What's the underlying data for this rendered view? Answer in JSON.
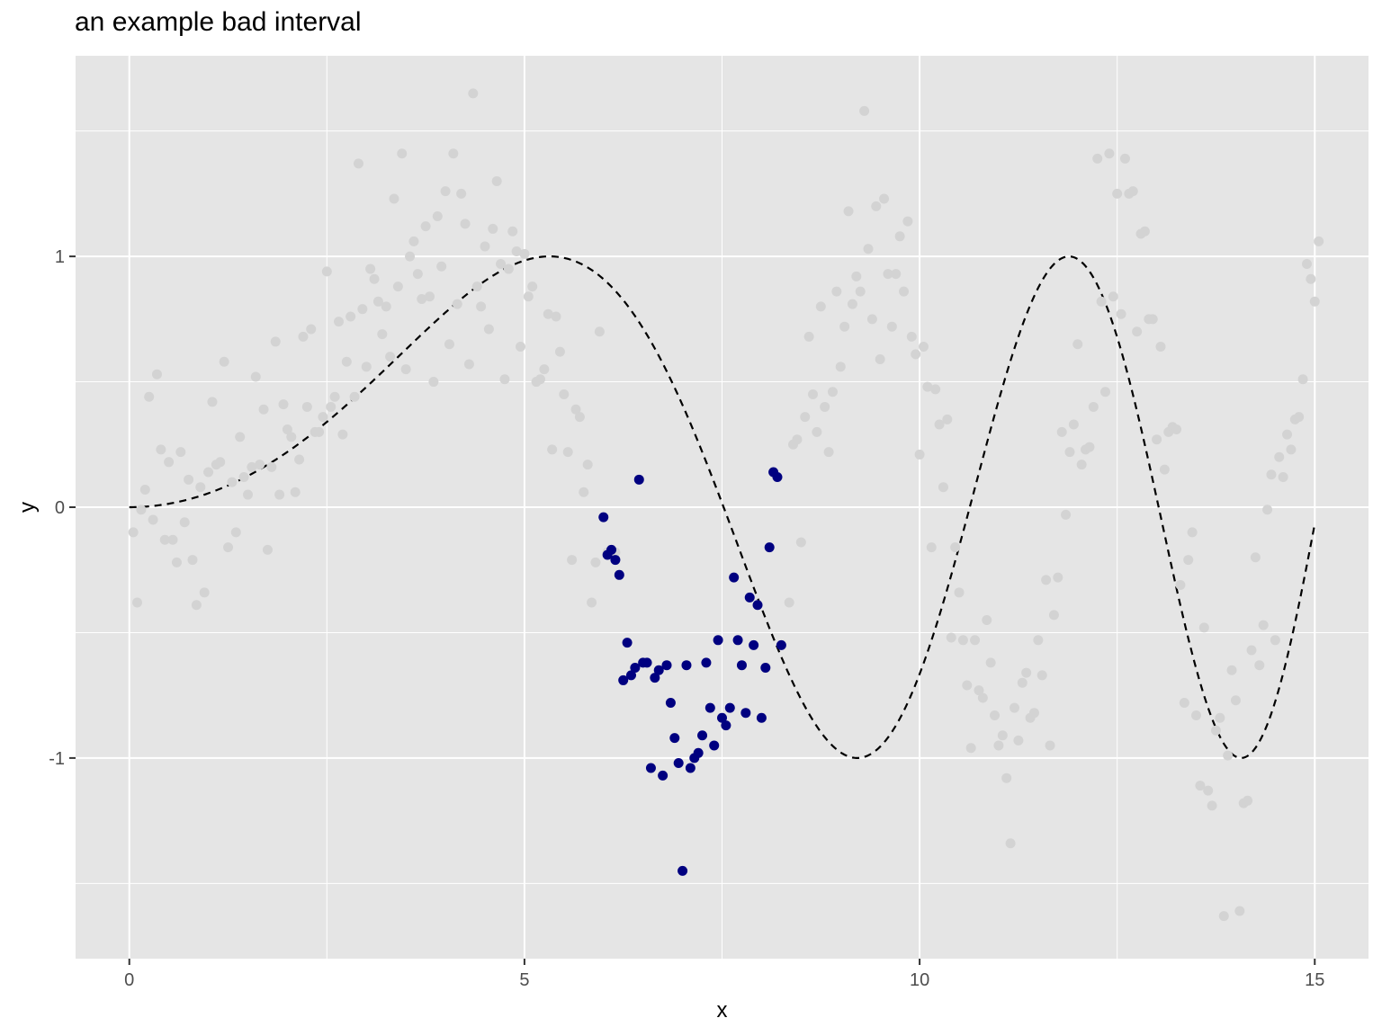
{
  "chart_data": {
    "type": "scatter",
    "title": "an example bad interval",
    "xlabel": "x",
    "ylabel": "y",
    "xlim": [
      -0.68,
      15.68
    ],
    "ylim": [
      -1.8,
      1.8
    ],
    "x_ticks": [
      0,
      5,
      10,
      15
    ],
    "y_ticks": [
      -1,
      0,
      1
    ],
    "x_tick_labels": [
      "0",
      "5",
      "10",
      "15"
    ],
    "y_tick_labels": [
      "-1",
      "0",
      "1"
    ],
    "background": "#e5e5e5",
    "grid": true,
    "grid_color": "#ffffff",
    "legend": "none",
    "reference_curve": {
      "description": "dashed black curve y = sin(x^2/18)",
      "style": "dashed",
      "color": "#000000",
      "x_range": [
        0,
        15
      ]
    },
    "series": [
      {
        "color": "#d3d3d3",
        "points": [
          [
            0.05,
            -0.1
          ],
          [
            0.1,
            -0.38
          ],
          [
            0.15,
            -0.01
          ],
          [
            0.2,
            0.07
          ],
          [
            0.25,
            0.44
          ],
          [
            0.3,
            -0.05
          ],
          [
            0.35,
            0.53
          ],
          [
            0.4,
            0.23
          ],
          [
            0.45,
            -0.13
          ],
          [
            0.5,
            0.18
          ],
          [
            0.55,
            -0.13
          ],
          [
            0.6,
            -0.22
          ],
          [
            0.65,
            0.22
          ],
          [
            0.7,
            -0.06
          ],
          [
            0.75,
            0.11
          ],
          [
            0.8,
            -0.21
          ],
          [
            0.85,
            -0.39
          ],
          [
            0.9,
            0.08
          ],
          [
            0.95,
            -0.34
          ],
          [
            1.0,
            0.14
          ],
          [
            1.05,
            0.42
          ],
          [
            1.1,
            0.17
          ],
          [
            1.15,
            0.18
          ],
          [
            1.2,
            0.58
          ],
          [
            1.25,
            -0.16
          ],
          [
            1.3,
            0.1
          ],
          [
            1.35,
            -0.1
          ],
          [
            1.4,
            0.28
          ],
          [
            1.45,
            0.12
          ],
          [
            1.5,
            0.05
          ],
          [
            1.55,
            0.16
          ],
          [
            1.6,
            0.52
          ],
          [
            1.65,
            0.17
          ],
          [
            1.7,
            0.39
          ],
          [
            1.75,
            -0.17
          ],
          [
            1.8,
            0.16
          ],
          [
            1.85,
            0.66
          ],
          [
            1.9,
            0.05
          ],
          [
            1.95,
            0.41
          ],
          [
            2.0,
            0.31
          ],
          [
            2.05,
            0.28
          ],
          [
            2.1,
            0.06
          ],
          [
            2.15,
            0.19
          ],
          [
            2.2,
            0.68
          ],
          [
            2.25,
            0.4
          ],
          [
            2.3,
            0.71
          ],
          [
            2.35,
            0.3
          ],
          [
            2.4,
            0.3
          ],
          [
            2.45,
            0.36
          ],
          [
            2.5,
            0.94
          ],
          [
            2.55,
            0.4
          ],
          [
            2.6,
            0.44
          ],
          [
            2.65,
            0.74
          ],
          [
            2.7,
            0.29
          ],
          [
            2.75,
            0.58
          ],
          [
            2.8,
            0.76
          ],
          [
            2.85,
            0.44
          ],
          [
            2.9,
            1.37
          ],
          [
            2.95,
            0.79
          ],
          [
            3.0,
            0.56
          ],
          [
            3.05,
            0.95
          ],
          [
            3.1,
            0.91
          ],
          [
            3.15,
            0.82
          ],
          [
            3.2,
            0.69
          ],
          [
            3.25,
            0.8
          ],
          [
            3.3,
            0.6
          ],
          [
            3.35,
            1.23
          ],
          [
            3.4,
            0.88
          ],
          [
            3.45,
            1.41
          ],
          [
            3.5,
            0.55
          ],
          [
            3.55,
            1.0
          ],
          [
            3.6,
            1.06
          ],
          [
            3.65,
            0.93
          ],
          [
            3.7,
            0.83
          ],
          [
            3.75,
            1.12
          ],
          [
            3.8,
            0.84
          ],
          [
            3.85,
            0.5
          ],
          [
            3.9,
            1.16
          ],
          [
            3.95,
            0.96
          ],
          [
            4.0,
            1.26
          ],
          [
            4.05,
            0.65
          ],
          [
            4.1,
            1.41
          ],
          [
            4.15,
            0.81
          ],
          [
            4.2,
            1.25
          ],
          [
            4.25,
            1.13
          ],
          [
            4.3,
            0.57
          ],
          [
            4.35,
            1.65
          ],
          [
            4.4,
            0.88
          ],
          [
            4.45,
            0.8
          ],
          [
            4.5,
            1.04
          ],
          [
            4.55,
            0.71
          ],
          [
            4.6,
            1.11
          ],
          [
            4.65,
            1.3
          ],
          [
            4.7,
            0.97
          ],
          [
            4.75,
            0.51
          ],
          [
            4.8,
            0.95
          ],
          [
            4.85,
            1.1
          ],
          [
            4.9,
            1.02
          ],
          [
            4.95,
            0.64
          ],
          [
            5.0,
            1.01
          ],
          [
            5.05,
            0.84
          ],
          [
            5.1,
            0.88
          ],
          [
            5.15,
            0.5
          ],
          [
            5.2,
            0.51
          ],
          [
            5.25,
            0.55
          ],
          [
            5.3,
            0.77
          ],
          [
            5.35,
            0.23
          ],
          [
            5.4,
            0.76
          ],
          [
            5.45,
            0.62
          ],
          [
            5.5,
            0.45
          ],
          [
            5.55,
            0.22
          ],
          [
            5.6,
            -0.21
          ],
          [
            5.65,
            0.39
          ],
          [
            5.7,
            0.36
          ],
          [
            5.75,
            0.06
          ],
          [
            5.8,
            0.17
          ],
          [
            5.85,
            -0.38
          ],
          [
            5.9,
            -0.22
          ],
          [
            5.95,
            0.7
          ],
          [
            6.05,
            -0.18
          ],
          [
            6.1,
            -0.18
          ],
          [
            6.15,
            -0.18
          ],
          [
            8.35,
            -0.38
          ],
          [
            8.4,
            0.25
          ],
          [
            8.45,
            0.27
          ],
          [
            8.5,
            -0.14
          ],
          [
            8.55,
            0.36
          ],
          [
            8.6,
            0.68
          ],
          [
            8.65,
            0.45
          ],
          [
            8.7,
            0.3
          ],
          [
            8.75,
            0.8
          ],
          [
            8.8,
            0.4
          ],
          [
            8.85,
            0.22
          ],
          [
            8.9,
            0.46
          ],
          [
            8.95,
            0.86
          ],
          [
            9.0,
            0.56
          ],
          [
            9.05,
            0.72
          ],
          [
            9.1,
            1.18
          ],
          [
            9.15,
            0.81
          ],
          [
            9.2,
            0.92
          ],
          [
            9.25,
            0.86
          ],
          [
            9.3,
            1.58
          ],
          [
            9.35,
            1.03
          ],
          [
            9.4,
            0.75
          ],
          [
            9.45,
            1.2
          ],
          [
            9.5,
            0.59
          ],
          [
            9.55,
            1.23
          ],
          [
            9.6,
            0.93
          ],
          [
            9.65,
            0.72
          ],
          [
            9.7,
            0.93
          ],
          [
            9.75,
            1.08
          ],
          [
            9.8,
            0.86
          ],
          [
            9.85,
            1.14
          ],
          [
            9.9,
            0.68
          ],
          [
            9.95,
            0.61
          ],
          [
            10.0,
            0.21
          ],
          [
            10.05,
            0.64
          ],
          [
            10.1,
            0.48
          ],
          [
            10.15,
            -0.16
          ],
          [
            10.2,
            0.47
          ],
          [
            10.25,
            0.33
          ],
          [
            10.3,
            0.08
          ],
          [
            10.35,
            0.35
          ],
          [
            10.4,
            -0.52
          ],
          [
            10.45,
            -0.16
          ],
          [
            10.5,
            -0.34
          ],
          [
            10.55,
            -0.53
          ],
          [
            10.6,
            -0.71
          ],
          [
            10.65,
            -0.96
          ],
          [
            10.7,
            -0.53
          ],
          [
            10.75,
            -0.73
          ],
          [
            10.8,
            -0.76
          ],
          [
            10.85,
            -0.45
          ],
          [
            10.9,
            -0.62
          ],
          [
            10.95,
            -0.83
          ],
          [
            11.0,
            -0.95
          ],
          [
            11.05,
            -0.91
          ],
          [
            11.1,
            -1.08
          ],
          [
            11.15,
            -1.34
          ],
          [
            11.2,
            -0.8
          ],
          [
            11.25,
            -0.93
          ],
          [
            11.3,
            -0.7
          ],
          [
            11.35,
            -0.66
          ],
          [
            11.4,
            -0.84
          ],
          [
            11.45,
            -0.82
          ],
          [
            11.5,
            -0.53
          ],
          [
            11.55,
            -0.67
          ],
          [
            11.6,
            -0.29
          ],
          [
            11.65,
            -0.95
          ],
          [
            11.7,
            -0.43
          ],
          [
            11.75,
            -0.28
          ],
          [
            11.8,
            0.3
          ],
          [
            11.85,
            -0.03
          ],
          [
            11.9,
            0.22
          ],
          [
            11.95,
            0.33
          ],
          [
            12.0,
            0.65
          ],
          [
            12.05,
            0.17
          ],
          [
            12.1,
            0.23
          ],
          [
            12.15,
            0.24
          ],
          [
            12.2,
            0.4
          ],
          [
            12.25,
            1.39
          ],
          [
            12.3,
            0.82
          ],
          [
            12.35,
            0.46
          ],
          [
            12.4,
            1.41
          ],
          [
            12.45,
            0.84
          ],
          [
            12.5,
            1.25
          ],
          [
            12.55,
            0.77
          ],
          [
            12.6,
            1.39
          ],
          [
            12.65,
            1.25
          ],
          [
            12.7,
            1.26
          ],
          [
            12.75,
            0.7
          ],
          [
            12.8,
            1.09
          ],
          [
            12.85,
            1.1
          ],
          [
            12.9,
            0.75
          ],
          [
            12.95,
            0.75
          ],
          [
            13.0,
            0.27
          ],
          [
            13.05,
            0.64
          ],
          [
            13.1,
            0.15
          ],
          [
            13.15,
            0.3
          ],
          [
            13.2,
            0.32
          ],
          [
            13.25,
            0.31
          ],
          [
            13.3,
            -0.31
          ],
          [
            13.35,
            -0.78
          ],
          [
            13.4,
            -0.21
          ],
          [
            13.45,
            -0.1
          ],
          [
            13.5,
            -0.83
          ],
          [
            13.55,
            -1.11
          ],
          [
            13.6,
            -0.48
          ],
          [
            13.65,
            -1.13
          ],
          [
            13.7,
            -1.19
          ],
          [
            13.75,
            -0.89
          ],
          [
            13.8,
            -0.84
          ],
          [
            13.85,
            -1.63
          ],
          [
            13.9,
            -0.99
          ],
          [
            13.95,
            -0.65
          ],
          [
            14.0,
            -0.77
          ],
          [
            14.05,
            -1.61
          ],
          [
            14.1,
            -1.18
          ],
          [
            14.15,
            -1.17
          ],
          [
            14.2,
            -0.57
          ],
          [
            14.25,
            -0.2
          ],
          [
            14.3,
            -0.63
          ],
          [
            14.35,
            -0.47
          ],
          [
            14.4,
            -0.01
          ],
          [
            14.45,
            0.13
          ],
          [
            14.5,
            -0.53
          ],
          [
            14.55,
            0.2
          ],
          [
            14.6,
            0.12
          ],
          [
            14.65,
            0.29
          ],
          [
            14.7,
            0.23
          ],
          [
            14.75,
            0.35
          ],
          [
            14.8,
            0.36
          ],
          [
            14.85,
            0.51
          ],
          [
            14.9,
            0.97
          ],
          [
            14.95,
            0.91
          ],
          [
            15.0,
            0.82
          ],
          [
            15.05,
            1.06
          ]
        ]
      },
      {
        "color": "#000080",
        "points": [
          [
            6.0,
            -0.04
          ],
          [
            6.05,
            -0.19
          ],
          [
            6.1,
            -0.17
          ],
          [
            6.15,
            -0.21
          ],
          [
            6.2,
            -0.27
          ],
          [
            6.25,
            -0.69
          ],
          [
            6.3,
            -0.54
          ],
          [
            6.35,
            -0.67
          ],
          [
            6.4,
            -0.64
          ],
          [
            6.45,
            0.11
          ],
          [
            6.5,
            -0.62
          ],
          [
            6.55,
            -0.62
          ],
          [
            6.6,
            -1.04
          ],
          [
            6.65,
            -0.68
          ],
          [
            6.7,
            -0.65
          ],
          [
            6.75,
            -1.07
          ],
          [
            6.8,
            -0.63
          ],
          [
            6.85,
            -0.78
          ],
          [
            6.9,
            -0.92
          ],
          [
            6.95,
            -1.02
          ],
          [
            7.0,
            -1.45
          ],
          [
            7.05,
            -0.63
          ],
          [
            7.1,
            -1.04
          ],
          [
            7.15,
            -1.0
          ],
          [
            7.2,
            -0.98
          ],
          [
            7.25,
            -0.91
          ],
          [
            7.3,
            -0.62
          ],
          [
            7.35,
            -0.8
          ],
          [
            7.4,
            -0.95
          ],
          [
            7.45,
            -0.53
          ],
          [
            7.5,
            -0.84
          ],
          [
            7.55,
            -0.87
          ],
          [
            7.6,
            -0.8
          ],
          [
            7.65,
            -0.28
          ],
          [
            7.7,
            -0.53
          ],
          [
            7.75,
            -0.63
          ],
          [
            7.8,
            -0.82
          ],
          [
            7.85,
            -0.36
          ],
          [
            7.9,
            -0.55
          ],
          [
            7.95,
            -0.39
          ],
          [
            8.0,
            -0.84
          ],
          [
            8.05,
            -0.64
          ],
          [
            8.1,
            -0.16
          ],
          [
            8.15,
            0.14
          ],
          [
            8.2,
            0.12
          ],
          [
            8.25,
            -0.55
          ]
        ]
      }
    ]
  }
}
